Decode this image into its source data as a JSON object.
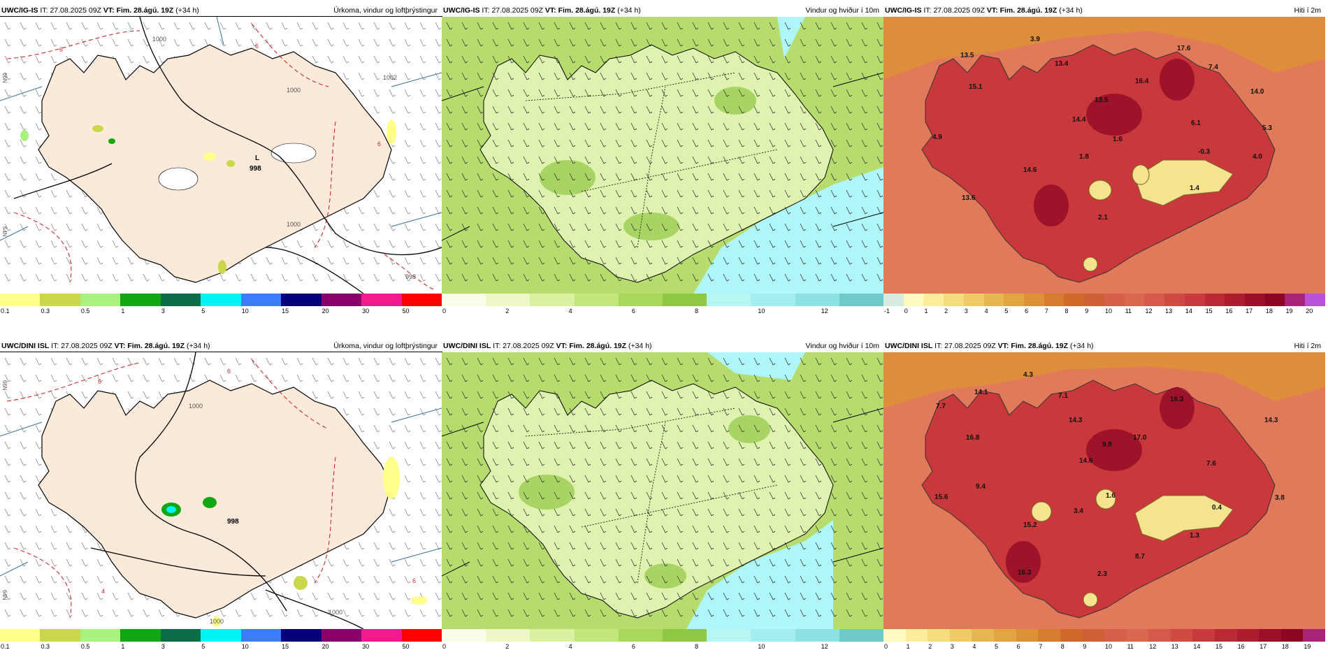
{
  "panels": [
    {
      "model": "UWC/IG-IS",
      "it_label": "IT:",
      "it_value": "27.08.2025 09Z",
      "vt_label": "VT:",
      "vt_value": "Fim. 28.ágú. 19Z",
      "lead": "(+34 h)",
      "title": "Úrkoma, vindur og loftþrýstingur",
      "labels": [
        "L",
        "998"
      ],
      "pressure_isolines": [
        "1000",
        "1002",
        "1000",
        "1000",
        "998",
        "6",
        "6",
        "6"
      ],
      "colorbar_ticks": [
        "0.1",
        "0.3",
        "0.5",
        "1",
        "3",
        "5",
        "10",
        "15",
        "20",
        "30",
        "50"
      ],
      "colorbar_colors": [
        "#ffff8a",
        "#c9d84a",
        "#a9f27e",
        "#12a612",
        "#0b6c48",
        "#00f4f4",
        "#3d7cff",
        "#08007a",
        "#8a006b",
        "#f11b8d",
        "#ff0000"
      ]
    },
    {
      "model": "UWC/IG-IS",
      "it_label": "IT:",
      "it_value": "27.08.2025 09Z",
      "vt_label": "VT:",
      "vt_value": "Fim. 28.ágú. 19Z",
      "lead": "(+34 h)",
      "title": "Vindur og hviður í 10m",
      "colorbar_ticks": [
        "0",
        "2",
        "4",
        "6",
        "8",
        "10",
        "12"
      ],
      "colorbar_colors": [
        "#fbfde8",
        "#eef8c6",
        "#d8f0a0",
        "#c2e67a",
        "#a8d85a",
        "#8fc843",
        "#b6f7f6",
        "#a2eef0",
        "#8ee2e4",
        "#6fc9c8"
      ]
    },
    {
      "model": "UWC/IG-IS",
      "it_label": "IT:",
      "it_value": "27.08.2025 09Z",
      "vt_label": "VT:",
      "vt_value": "Fim. 28.ágú. 19Z",
      "lead": "(+34 h)",
      "title": "Hiti í 2m",
      "values": [
        "3.9",
        "13.5",
        "13.4",
        "17.6",
        "7.4",
        "15.1",
        "16.4",
        "13.5",
        "14.0",
        "14.4",
        "6.1",
        "5.3",
        "4.9",
        "1.6",
        "1.8",
        "-0.3",
        "4.0",
        "14.6",
        "1.4",
        "13.6",
        "2.1"
      ],
      "colorbar_ticks": [
        "-1",
        "0",
        "1",
        "2",
        "3",
        "4",
        "5",
        "6",
        "7",
        "8",
        "9",
        "10",
        "11",
        "12",
        "13",
        "14",
        "15",
        "16",
        "17",
        "18",
        "19",
        "20"
      ],
      "colorbar_colors": [
        "#d9eadf",
        "#fffbc0",
        "#fbed9c",
        "#f5dc7f",
        "#eecb66",
        "#e7b752",
        "#e3a442",
        "#dd9036",
        "#d77d2f",
        "#d1692b",
        "#cf5f34",
        "#d6604a",
        "#d9684f",
        "#d65a4b",
        "#d04a44",
        "#c83a3d",
        "#bc2834",
        "#ae1a2e",
        "#9c0f29",
        "#8d0724",
        "#a8237a",
        "#b954d8"
      ]
    },
    {
      "model": "UWC/DINI ISL",
      "it_label": "IT:",
      "it_value": "27.08.2025 09Z",
      "vt_label": "VT:",
      "vt_value": "Fim. 28.ágú. 19Z",
      "lead": "(+34 h)",
      "title": "Úrkoma, vindur og loftþrýstingur",
      "labels": [
        "998"
      ],
      "pressure_isolines": [
        "1000",
        "1000",
        "1000",
        "6",
        "6",
        "6",
        "4"
      ],
      "colorbar_ticks": [
        "0.1",
        "0.3",
        "0.5",
        "1",
        "3",
        "5",
        "10",
        "15",
        "20",
        "30",
        "50"
      ],
      "colorbar_colors": [
        "#ffff8a",
        "#c9d84a",
        "#a9f27e",
        "#12a612",
        "#0b6c48",
        "#00f4f4",
        "#3d7cff",
        "#08007a",
        "#8a006b",
        "#f11b8d",
        "#ff0000"
      ]
    },
    {
      "model": "UWC/DINI ISL",
      "it_label": "IT:",
      "it_value": "27.08.2025 09Z",
      "vt_label": "VT:",
      "vt_value": "Fim. 28.ágú. 19Z",
      "lead": "(+34 h)",
      "title": "Vindur og hviður í 10m",
      "colorbar_ticks": [
        "0",
        "2",
        "4",
        "6",
        "8",
        "10",
        "12"
      ],
      "colorbar_colors": [
        "#fbfde8",
        "#eef8c6",
        "#d8f0a0",
        "#c2e67a",
        "#a8d85a",
        "#8fc843",
        "#b6f7f6",
        "#a2eef0",
        "#8ee2e4",
        "#6fc9c8"
      ]
    },
    {
      "model": "UWC/DINI ISL",
      "it_label": "IT:",
      "it_value": "27.08.2025 09Z",
      "vt_label": "VT:",
      "vt_value": "Fim. 28.ágú. 19Z",
      "lead": "(+34 h)",
      "title": "Hiti í 2m",
      "values": [
        "4.3",
        "14.1",
        "7.1",
        "16.3",
        "7.7",
        "14.3",
        "14.3",
        "16.8",
        "9.8",
        "17.0",
        "14.6",
        "7.6",
        "9.4",
        "15.6",
        "3.4",
        "1.6",
        "0.4",
        "3.8",
        "15.2",
        "1.3",
        "8.7",
        "16.3",
        "2.3"
      ],
      "colorbar_ticks": [
        "0",
        "1",
        "2",
        "3",
        "4",
        "5",
        "6",
        "7",
        "8",
        "9",
        "10",
        "11",
        "12",
        "13",
        "14",
        "15",
        "16",
        "17",
        "18",
        "19"
      ],
      "colorbar_colors": [
        "#fffbc0",
        "#fbed9c",
        "#f5dc7f",
        "#eecb66",
        "#e7b752",
        "#e3a442",
        "#dd9036",
        "#d77d2f",
        "#d1692b",
        "#cf5f34",
        "#d6604a",
        "#d9684f",
        "#d65a4b",
        "#d04a44",
        "#c83a3d",
        "#bc2834",
        "#ae1a2e",
        "#9c0f29",
        "#8d0724",
        "#a8237a"
      ]
    }
  ],
  "grid_labels": [
    "66N",
    "64N"
  ],
  "colors": {
    "land_precip": "#fbe9da",
    "sea": "#ffffff",
    "isobar": "#000000",
    "isotherm": "#d22b2b",
    "meridian": "#3a6f9f",
    "wind_light": "#dff2b0",
    "wind_mid": "#b7dc6e",
    "wind_strong": "#8fc843",
    "wind_gust": "#aef6f8",
    "temp_land": "#c9383a",
    "temp_sea": "#e07a5a",
    "temp_cold": "#f4e48e"
  }
}
